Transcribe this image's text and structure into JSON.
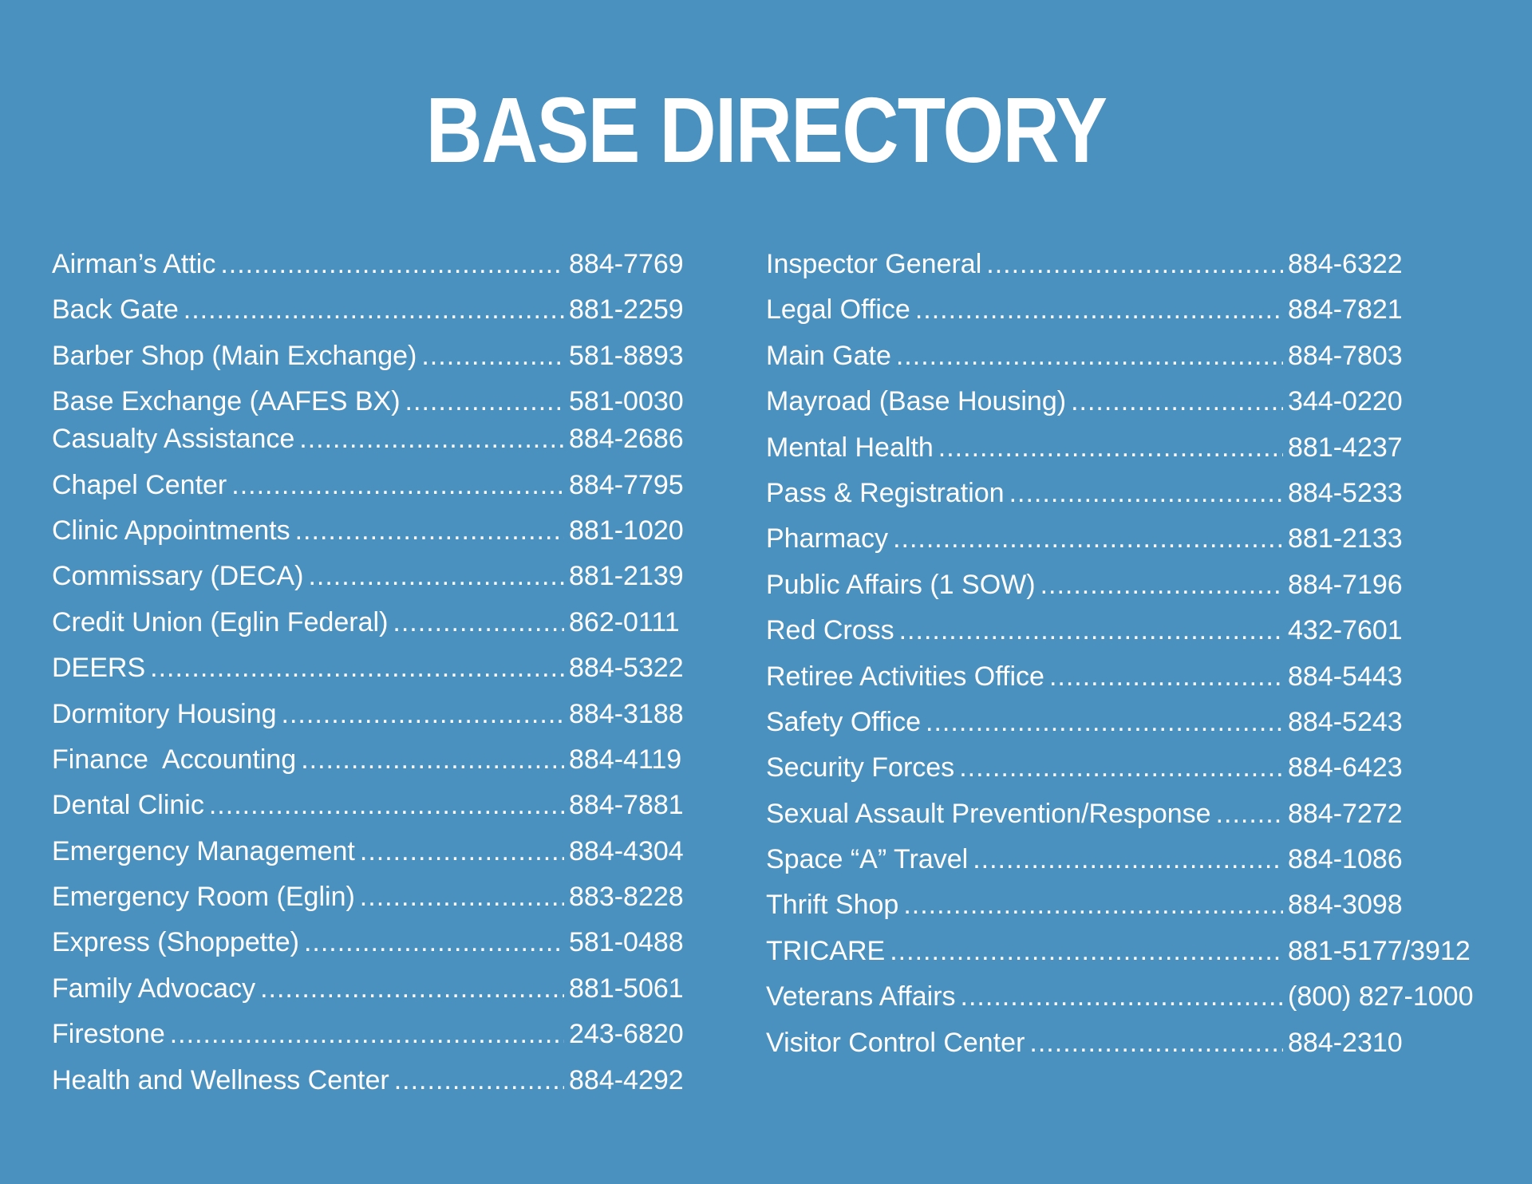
{
  "title": "BASE DIRECTORY",
  "left_column": [
    {
      "name": "Airman’s Attic",
      "phone": "884-7769"
    },
    {
      "name": "Back Gate",
      "phone": "881-2259"
    },
    {
      "name": "Barber Shop (Main Exchange)",
      "phone": "581-8893"
    },
    {
      "name": "Base Exchange (AAFES BX)",
      "phone": "581-0030"
    },
    {
      "name": "Casualty Assistance",
      "phone": "884-2686"
    },
    {
      "name": "Chapel Center",
      "phone": "884-7795"
    },
    {
      "name": "Clinic Appointments",
      "phone": "881-1020"
    },
    {
      "name": "Commissary (DECA)",
      "phone": "881-2139"
    },
    {
      "name": "Credit Union (Eglin Federal)",
      "phone": "862-0111"
    },
    {
      "name": "DEERS",
      "phone": "884-5322"
    },
    {
      "name": "Dormitory Housing",
      "phone": "884-3188"
    },
    {
      "name": "Finance  Accounting",
      "phone": "884-4119"
    },
    {
      "name": "Dental Clinic",
      "phone": "884-7881"
    },
    {
      "name": "Emergency Management",
      "phone": "884-4304"
    },
    {
      "name": "Emergency Room (Eglin)",
      "phone": "883-8228"
    },
    {
      "name": "Express (Shoppette)",
      "phone": "581-0488"
    },
    {
      "name": "Family Advocacy",
      "phone": "881-5061"
    },
    {
      "name": "Firestone",
      "phone": "243-6820"
    },
    {
      "name": "Health and Wellness Center",
      "phone": "884-4292"
    }
  ],
  "right_column": [
    {
      "name": "Inspector General",
      "phone": "884-6322"
    },
    {
      "name": "Legal Office",
      "phone": "884-7821"
    },
    {
      "name": "Main Gate",
      "phone": "884-7803"
    },
    {
      "name": "Mayroad (Base Housing)",
      "phone": "344-0220"
    },
    {
      "name": "Mental Health",
      "phone": "881-4237"
    },
    {
      "name": "Pass & Registration",
      "phone": "884-5233"
    },
    {
      "name": "Pharmacy",
      "phone": "881-2133"
    },
    {
      "name": "Public Affairs (1 SOW)",
      "phone": "884-7196"
    },
    {
      "name": "Red Cross",
      "phone": "432-7601"
    },
    {
      "name": "Retiree Activities Office",
      "phone": "884-5443"
    },
    {
      "name": "Safety Office",
      "phone": "884-5243"
    },
    {
      "name": "Security Forces",
      "phone": "884-6423"
    },
    {
      "name": "Sexual Assault Prevention/Response",
      "phone": "884-7272"
    },
    {
      "name": "Space “A” Travel",
      "phone": "884-1086"
    },
    {
      "name": "Thrift Shop",
      "phone": "884-3098"
    },
    {
      "name": "TRICARE",
      "phone": "881-5177/3912"
    },
    {
      "name": "Veterans Affairs",
      "phone": "(800) 827-1000"
    },
    {
      "name": "Visitor Control Center",
      "phone": "884-2310"
    }
  ]
}
